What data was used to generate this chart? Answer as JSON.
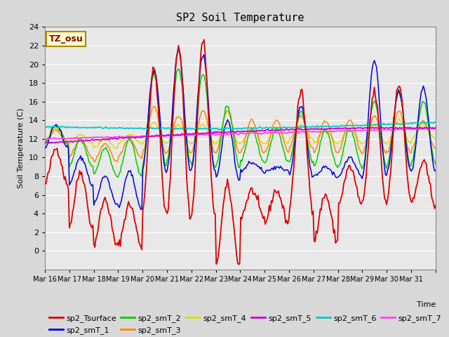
{
  "title": "SP2 Soil Temperature",
  "ylabel": "Soil Temperature (C)",
  "xlabel": "Time",
  "tz_label": "TZ_osu",
  "ylim": [
    -2,
    24
  ],
  "yticks": [
    0,
    2,
    4,
    6,
    8,
    10,
    12,
    14,
    16,
    18,
    20,
    22,
    24
  ],
  "xticklabels": [
    "Mar 16",
    "Mar 17",
    "Mar 18",
    "Mar 19",
    "Mar 20",
    "Mar 21",
    "Mar 22",
    "Mar 23",
    "Mar 24",
    "Mar 25",
    "Mar 26",
    "Mar 27",
    "Mar 28",
    "Mar 29",
    "Mar 30",
    "Mar 31"
  ],
  "series_colors": {
    "sp2_Tsurface": "#dd0000",
    "sp2_smT_1": "#0000dd",
    "sp2_smT_2": "#00cc00",
    "sp2_smT_3": "#ff8800",
    "sp2_smT_4": "#dddd00",
    "sp2_smT_5": "#cc00cc",
    "sp2_smT_6": "#00cccc",
    "sp2_smT_7": "#ff44ee"
  },
  "background_color": "#d8d8d8",
  "plot_bg_color": "#e8e8e8",
  "grid_color": "#ffffff"
}
